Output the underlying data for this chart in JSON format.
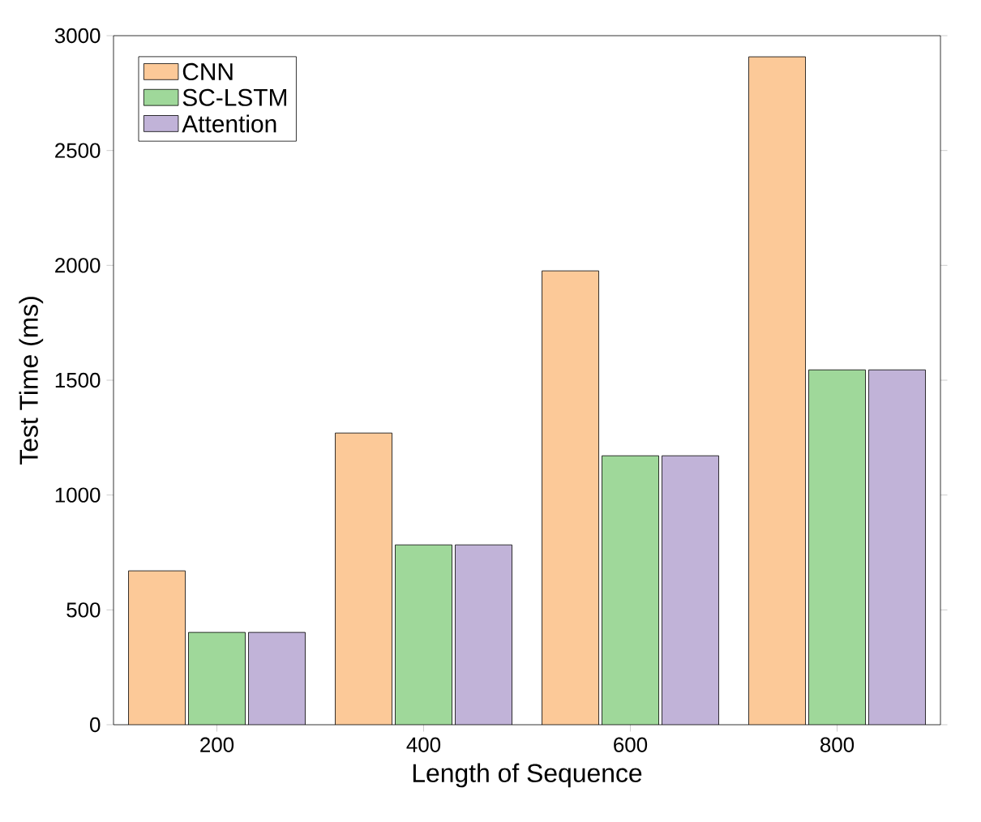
{
  "chart_data": {
    "type": "bar",
    "xlabel": "Length of Sequence",
    "ylabel": "Test Time (ms)",
    "categories": [
      "200",
      "400",
      "600",
      "800"
    ],
    "series": [
      {
        "name": "CNN",
        "color": "#fcc998",
        "values": [
          670,
          1270,
          1976,
          2908
        ]
      },
      {
        "name": "SC-LSTM",
        "color": "#9fd89a",
        "values": [
          402,
          783,
          1171,
          1545
        ]
      },
      {
        "name": "Attention",
        "color": "#c1b3d8",
        "values": [
          402,
          783,
          1171,
          1545
        ]
      }
    ],
    "ylim": [
      0,
      3000
    ],
    "yticks": [
      0,
      500,
      1000,
      1500,
      2000,
      2500,
      3000
    ],
    "legend": "top left",
    "grid": false
  }
}
